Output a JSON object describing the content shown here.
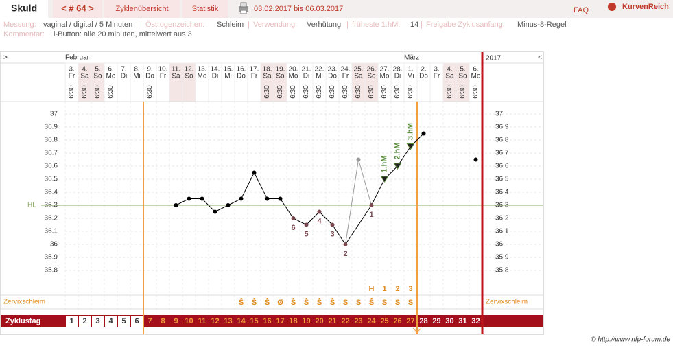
{
  "header": {
    "tab": "Skuld",
    "cycle_nav": "< # 64 >",
    "overview": "Zyklenübersicht",
    "stats": "Statistik",
    "range": "03.02.2017 bis 06.03.2017",
    "faq": "FAQ",
    "brand": "KurvenReich"
  },
  "info": {
    "fields": [
      {
        "label": "Messung:",
        "value": "vaginal / digital / 5 Minuten"
      },
      {
        "label": "Östrogenzeichen:",
        "value": "Schleim"
      },
      {
        "label": "Verwendung:",
        "value": "Verhütung"
      },
      {
        "label": "früheste 1.hM:",
        "value": "14"
      },
      {
        "label": "Freigabe Zyklusanfang:",
        "value": "Minus-8-Regel"
      }
    ],
    "comment": {
      "label": "Kommentar:",
      "value": "i-Button: alle 20 minuten, mittelwert aus 3"
    }
  },
  "chart_data": {
    "type": "line",
    "nav_left": ">",
    "nav_right": "<",
    "year": "2017",
    "month_labels": [
      "Februar",
      null,
      null,
      null,
      null,
      null,
      null,
      null,
      null,
      null,
      null,
      null,
      null,
      null,
      null,
      null,
      null,
      null,
      null,
      null,
      null,
      null,
      null,
      null,
      null,
      null,
      "März",
      null,
      null,
      null,
      null,
      null
    ],
    "categories": [
      "3.",
      "4.",
      "5.",
      "6.",
      "7.",
      "8.",
      "9.",
      "10.",
      "11.",
      "12.",
      "13.",
      "14.",
      "15.",
      "16.",
      "17.",
      "18.",
      "19.",
      "20.",
      "21.",
      "22.",
      "23.",
      "24.",
      "25.",
      "26.",
      "27.",
      "28.",
      "1.",
      "2.",
      "3.",
      "4.",
      "5.",
      "6."
    ],
    "weekdays": [
      "Fr",
      "Sa",
      "So",
      "Mo",
      "Di",
      "Mi",
      "Do",
      "Fr",
      "Sa",
      "So",
      "Mo",
      "Di",
      "Mi",
      "Do",
      "Fr",
      "Sa",
      "So",
      "Mo",
      "Di",
      "Mi",
      "Do",
      "Fr",
      "Sa",
      "So",
      "Mo",
      "Di",
      "Mi",
      "Do",
      "Fr",
      "Sa",
      "So",
      "Mo"
    ],
    "times": [
      "6:30",
      "6:30",
      "6:30",
      "6:30",
      null,
      null,
      "6:30",
      null,
      null,
      null,
      null,
      null,
      null,
      null,
      null,
      "6:30",
      "6:30",
      "6:30",
      "6:30",
      "6:30",
      "6:30",
      "6:30",
      "6:30",
      "6:30",
      "6:30",
      "6:30",
      "6:30",
      null,
      null,
      "6:30",
      "6:30",
      "6:30"
    ],
    "series": [
      {
        "name": "Temperatur",
        "color": "#000000",
        "values": [
          null,
          null,
          null,
          null,
          null,
          null,
          null,
          null,
          36.3,
          36.35,
          36.35,
          36.25,
          36.3,
          36.35,
          36.55,
          36.35,
          36.35,
          36.2,
          36.15,
          36.25,
          36.15,
          36.0,
          null,
          36.3,
          36.5,
          36.6,
          36.75,
          36.85,
          null,
          null,
          null,
          36.65
        ]
      }
    ],
    "excluded": {
      "color": "#999999",
      "values": [
        null,
        null,
        null,
        null,
        null,
        null,
        null,
        null,
        null,
        null,
        null,
        null,
        null,
        null,
        null,
        null,
        null,
        null,
        null,
        null,
        null,
        null,
        36.65,
        null,
        null,
        null,
        null,
        null,
        null,
        null,
        null,
        null
      ]
    },
    "point_labels": [
      null,
      null,
      null,
      null,
      null,
      null,
      null,
      null,
      null,
      null,
      null,
      null,
      null,
      null,
      null,
      null,
      null,
      "6",
      "5",
      "4",
      "3",
      "2",
      null,
      "1",
      null,
      null,
      null,
      null,
      null,
      null,
      null,
      null
    ],
    "hm_labels": [
      null,
      null,
      null,
      null,
      null,
      null,
      null,
      null,
      null,
      null,
      null,
      null,
      null,
      null,
      null,
      null,
      null,
      null,
      null,
      null,
      null,
      null,
      null,
      null,
      "1.hM",
      "2.hM",
      "3.hM",
      null,
      null,
      null,
      null,
      null
    ],
    "peak_labels": [
      null,
      null,
      null,
      null,
      null,
      null,
      null,
      null,
      null,
      null,
      null,
      null,
      null,
      null,
      null,
      null,
      null,
      null,
      null,
      null,
      null,
      null,
      null,
      "H",
      "1",
      "2",
      "3",
      null,
      null,
      null,
      null,
      null
    ],
    "mucus_label": "Zervixschleim",
    "mucus": [
      null,
      null,
      null,
      null,
      null,
      null,
      null,
      null,
      null,
      null,
      null,
      null,
      null,
      "Ŝ",
      "Ŝ",
      "Ŝ",
      "Ø",
      "Ŝ",
      "Ŝ",
      "Ŝ",
      "Ŝ",
      "S",
      "S",
      "Ŝ",
      "S",
      "S",
      "S",
      null,
      null,
      null,
      null,
      null
    ],
    "coverline": {
      "label": "HL",
      "value": 36.3,
      "color": "#8aa860"
    },
    "row_label": "Zyklustag",
    "cycle_days": [
      1,
      2,
      3,
      4,
      5,
      6,
      7,
      8,
      9,
      10,
      11,
      12,
      13,
      14,
      15,
      16,
      17,
      18,
      19,
      20,
      21,
      22,
      23,
      24,
      25,
      26,
      27,
      28,
      29,
      30,
      31,
      32
    ],
    "ylim": [
      35.7,
      37.1
    ],
    "yticks": [
      35.8,
      35.9,
      36,
      36.1,
      36.2,
      36.3,
      36.4,
      36.5,
      36.6,
      36.7,
      36.8,
      36.9,
      37
    ],
    "grid": true
  },
  "footer": "© http://www.nfp-forum.de"
}
